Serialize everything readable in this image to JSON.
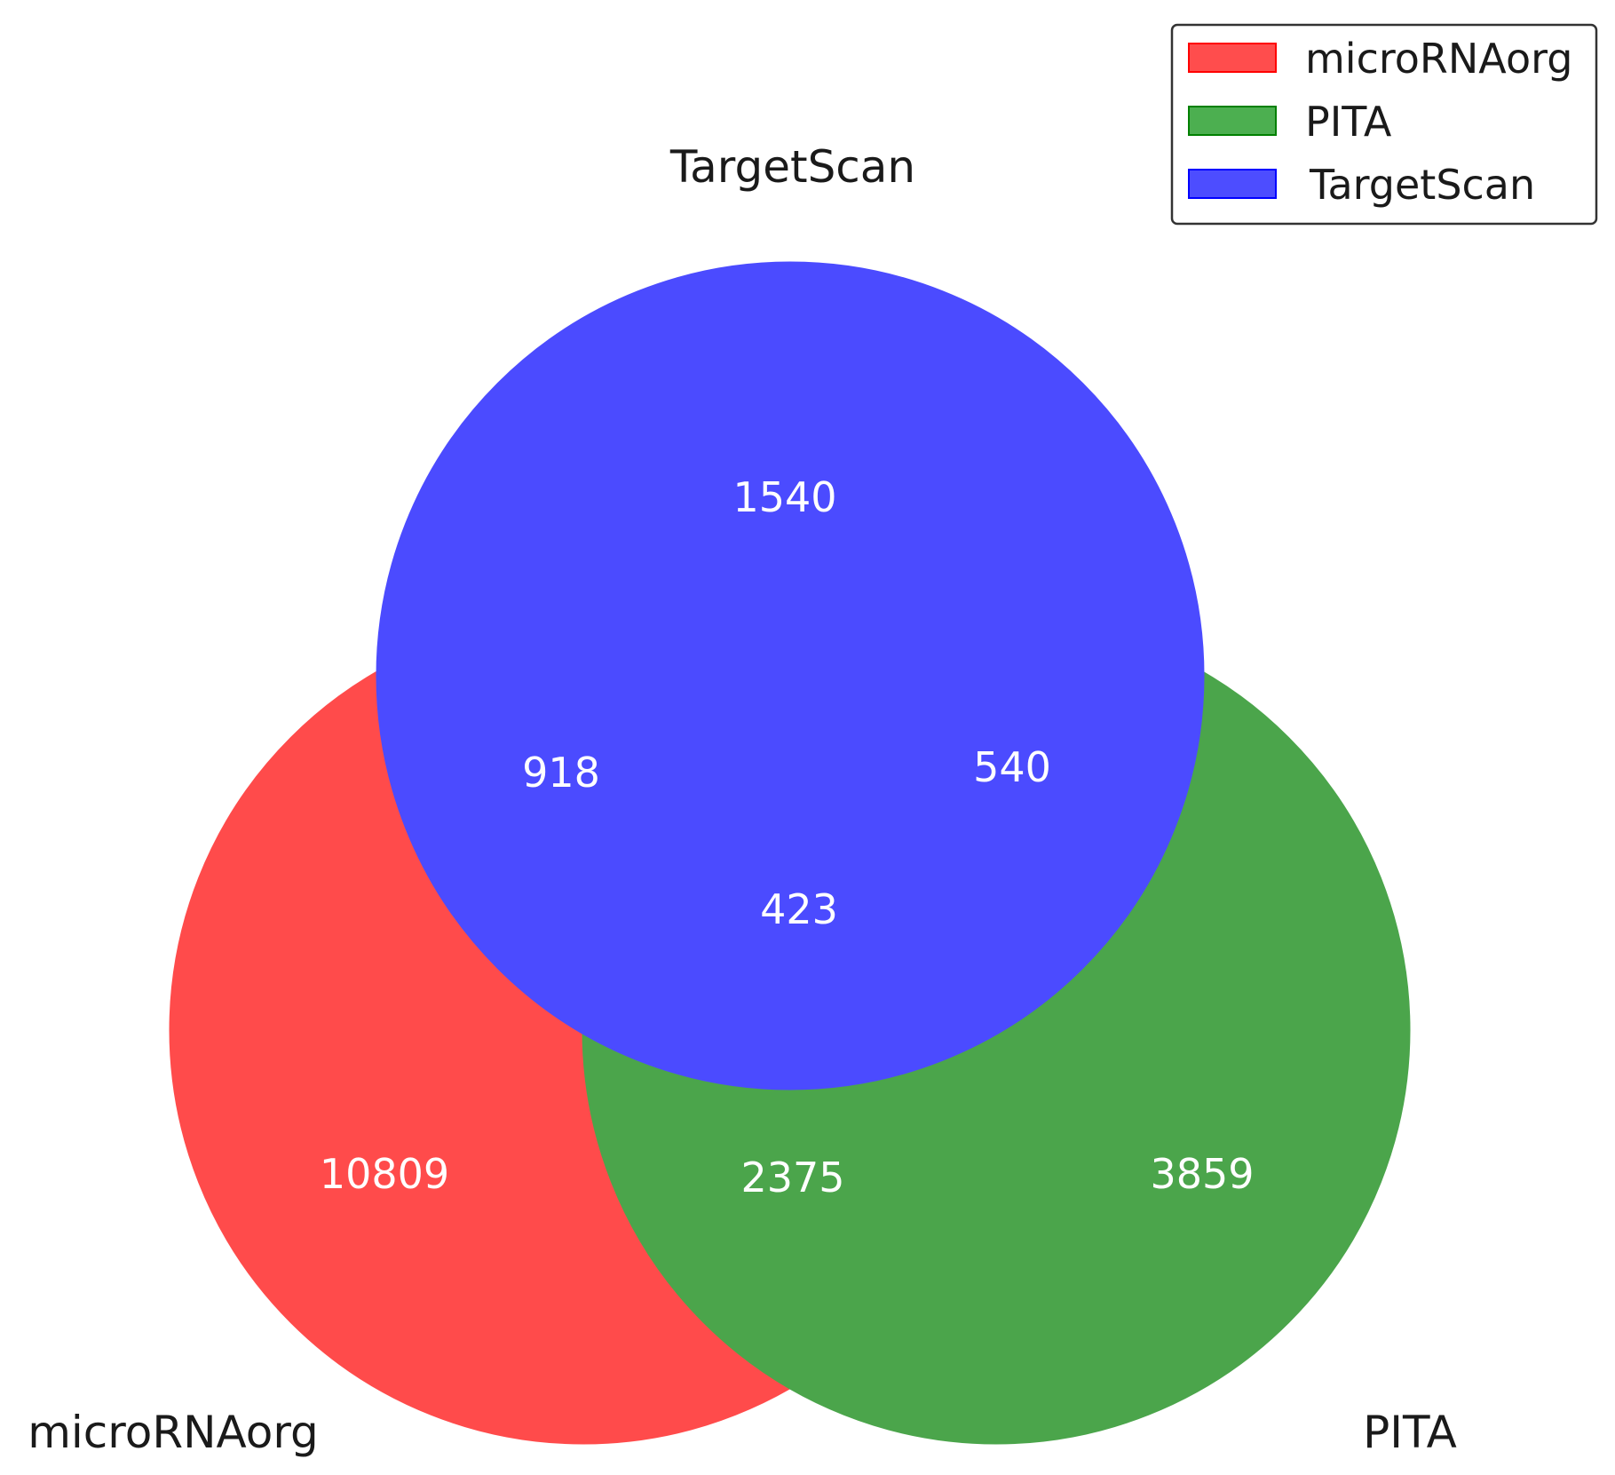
{
  "sets": [
    {
      "id": "microRNAorg",
      "label": "microRNAorg",
      "color": "#ff0000"
    },
    {
      "id": "PITA",
      "label": "PITA",
      "color": "#008000"
    },
    {
      "id": "TargetScan",
      "label": "TargetScan",
      "color": "#0000ff"
    }
  ],
  "regions": {
    "microRNAorg_only": "10809",
    "PITA_only": "3859",
    "TargetScan_only": "1540",
    "microRNAorg_TargetScan": "918",
    "PITA_TargetScan": "540",
    "microRNAorg_PITA": "2375",
    "all_three": "423"
  },
  "legend": {
    "placement": "top-right",
    "items": [
      {
        "label": "microRNAorg",
        "color": "#ff4d4d"
      },
      {
        "label": "PITA",
        "color": "#4caf50"
      },
      {
        "label": "TargetScan",
        "color": "#4d4dff"
      }
    ]
  }
}
